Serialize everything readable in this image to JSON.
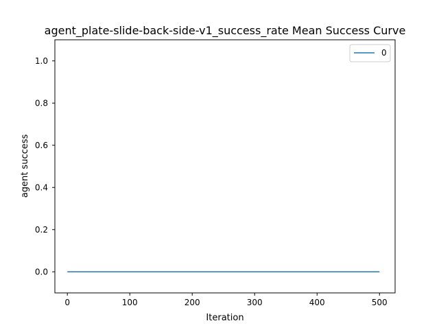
{
  "chart_data": {
    "type": "line",
    "title": "agent_plate-slide-back-side-v1_success_rate Mean Success Curve",
    "xlabel": "Iteration",
    "ylabel": "agent success",
    "xlim": [
      -20,
      525
    ],
    "ylim": [
      -0.1,
      1.1
    ],
    "xticks": [
      0,
      100,
      200,
      300,
      400,
      500
    ],
    "yticks": [
      0.0,
      0.2,
      0.4,
      0.6,
      0.8,
      1.0
    ],
    "xtick_labels": [
      "0",
      "100",
      "200",
      "300",
      "400",
      "500"
    ],
    "ytick_labels": [
      "0.0",
      "0.2",
      "0.4",
      "0.6",
      "0.8",
      "1.0"
    ],
    "grid": false,
    "legend_position": "top-right",
    "series": [
      {
        "name": "0",
        "color": "#1f77b4",
        "x": [
          0,
          500
        ],
        "y": [
          0.0,
          0.0
        ]
      }
    ]
  }
}
